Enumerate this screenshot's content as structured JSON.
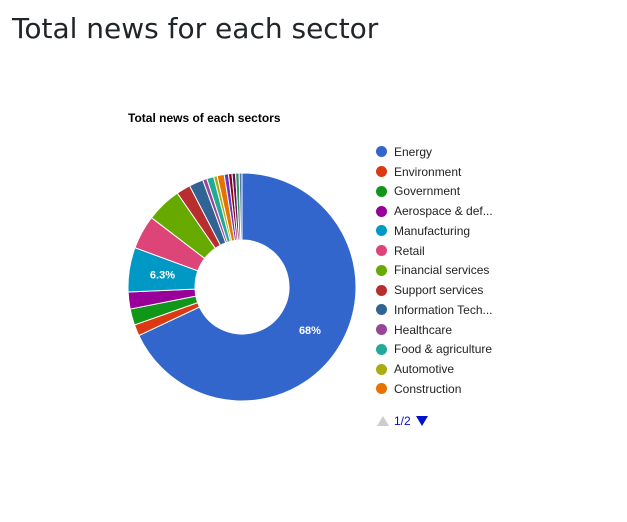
{
  "page": {
    "title": "Total news for each sector"
  },
  "colors": {
    "pager_active": "#0011cc",
    "pager_disabled": "#cccccc"
  },
  "chart_data": {
    "type": "pie",
    "donut": true,
    "title": "Total news of each sectors",
    "legend_position": "right",
    "slice_labels": [
      "68%",
      "6.3%"
    ],
    "slices": [
      {
        "label": "Energy",
        "value": 68.0,
        "color": "#3366cc"
      },
      {
        "label": "Environment",
        "value": 1.6,
        "color": "#dc3912"
      },
      {
        "label": "Government",
        "value": 2.3,
        "color": "#109618"
      },
      {
        "label": "Aerospace & def...",
        "value": 2.4,
        "color": "#990099"
      },
      {
        "label": "Manufacturing",
        "value": 6.3,
        "color": "#0099c6"
      },
      {
        "label": "Retail",
        "value": 4.8,
        "color": "#dd4477"
      },
      {
        "label": "Financial services",
        "value": 5.0,
        "color": "#66aa00"
      },
      {
        "label": "Support services",
        "value": 2.0,
        "color": "#b82e2e"
      },
      {
        "label": "Information Tech...",
        "value": 2.0,
        "color": "#316395"
      },
      {
        "label": "Healthcare",
        "value": 0.6,
        "color": "#994499"
      },
      {
        "label": "Food & agriculture",
        "value": 1.0,
        "color": "#22aa99"
      },
      {
        "label": "Automotive",
        "value": 0.5,
        "color": "#aaaa11"
      },
      {
        "label": "Construction",
        "value": 1.0,
        "color": "#e67300"
      },
      {
        "value": 0.6,
        "color": "#6633cc"
      },
      {
        "value": 0.5,
        "color": "#8b0707"
      },
      {
        "value": 0.5,
        "color": "#651067"
      },
      {
        "value": 0.5,
        "color": "#329262"
      },
      {
        "value": 0.4,
        "color": "#5574a6"
      }
    ],
    "legend": {
      "page": "1/2",
      "visible_items": [
        "Energy",
        "Environment",
        "Government",
        "Aerospace & def...",
        "Manufacturing",
        "Retail",
        "Financial services",
        "Support services",
        "Information Tech...",
        "Healthcare",
        "Food & agriculture",
        "Automotive",
        "Construction"
      ]
    }
  }
}
